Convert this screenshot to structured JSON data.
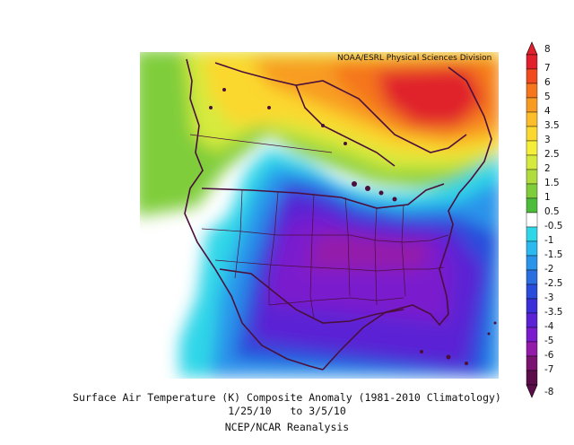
{
  "credit": "NOAA/ESRL Physical Sciences Division",
  "caption": {
    "title": "Surface Air Temperature (K) Composite Anomaly (1981-2010 Climatology)",
    "dates": "1/25/10   to 3/5/10",
    "source": "NCEP/NCAR Reanalysis"
  },
  "colorbar": {
    "labels": [
      "8",
      "7",
      "6",
      "5",
      "4",
      "3.5",
      "3",
      "2.5",
      "2",
      "1.5",
      "1",
      "0.5",
      "-0.5",
      "-1",
      "-1.5",
      "-2",
      "-2.5",
      "-3",
      "-3.5",
      "-4",
      "-5",
      "-6",
      "-7",
      "-8"
    ],
    "colors": [
      "#e0202c",
      "#f24a1f",
      "#f5761d",
      "#f89b23",
      "#fbbd29",
      "#fbd82f",
      "#f6ef3a",
      "#d6ea3e",
      "#b0dd3d",
      "#7fcd3b",
      "#4cbd3a",
      "#ffffff",
      "#2fd6e8",
      "#2bb9f0",
      "#2a94ea",
      "#2a6ee0",
      "#2a4cdb",
      "#3a2fd8",
      "#5a22d4",
      "#7a1cce",
      "#941aaa",
      "#7a1270",
      "#5a0d4a"
    ]
  }
}
